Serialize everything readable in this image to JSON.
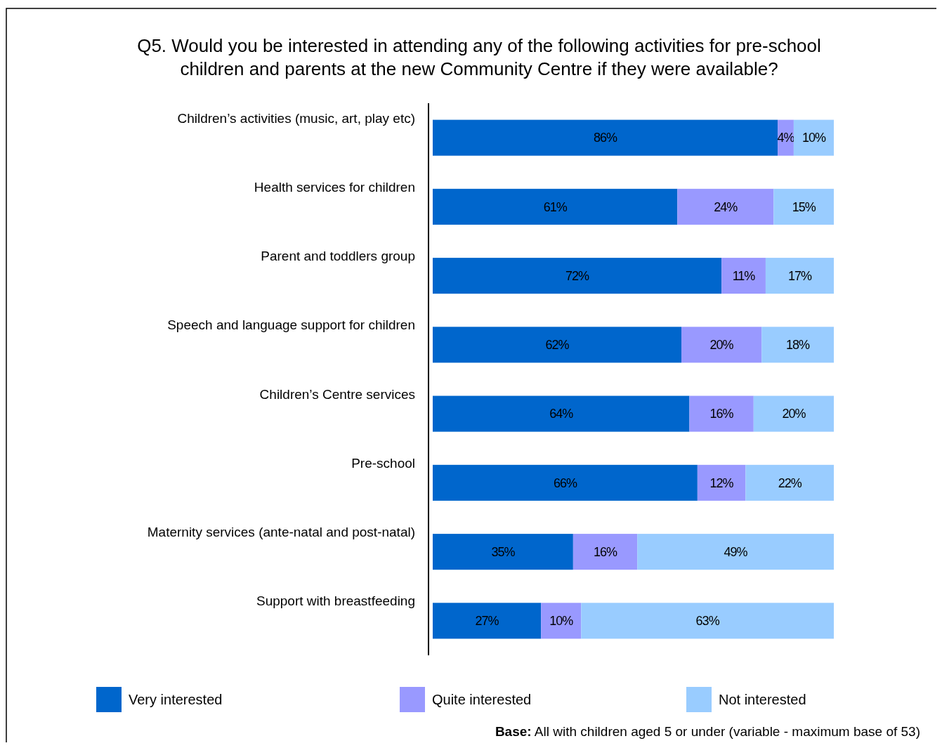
{
  "chart_data": {
    "type": "bar",
    "orientation": "horizontal",
    "stacked": true,
    "title": "Q5. Would you be interested in attending any of the following activities for pre-school children and parents at the new Community Centre if they were available?",
    "categories": [
      "Children’s activities (music, art, play etc)",
      "Health services for children",
      "Parent and toddlers group",
      "Speech and language support for children",
      "Children’s Centre services",
      "Pre-school",
      "Maternity services (ante-natal and post-natal)",
      "Support with breastfeeding"
    ],
    "series": [
      {
        "name": "Very interested",
        "color": "#0066cc",
        "values": [
          86,
          61,
          72,
          62,
          64,
          66,
          35,
          27
        ],
        "value_labels": [
          "86%",
          "61%",
          "72%",
          "62%",
          "64%",
          "66%",
          "35%",
          "27%"
        ]
      },
      {
        "name": "Quite interested",
        "color": "#9999ff",
        "values": [
          4,
          24,
          11,
          20,
          16,
          12,
          16,
          10
        ],
        "value_labels": [
          "4%",
          "24%",
          "11%",
          "20%",
          "16%",
          "12%",
          "16%",
          "10%"
        ]
      },
      {
        "name": "Not interested",
        "color": "#99ccff",
        "values": [
          10,
          15,
          17,
          18,
          20,
          22,
          49,
          63
        ],
        "value_labels": [
          "10%",
          "15%",
          "17%",
          "18%",
          "20%",
          "22%",
          "49%",
          "63%"
        ]
      }
    ],
    "xlim": [
      0,
      100
    ],
    "tick_labels": "y",
    "legend": "bottom",
    "annotations": [
      "Base: All with children aged 5 or under (variable - maximum base of 53)"
    ]
  }
}
